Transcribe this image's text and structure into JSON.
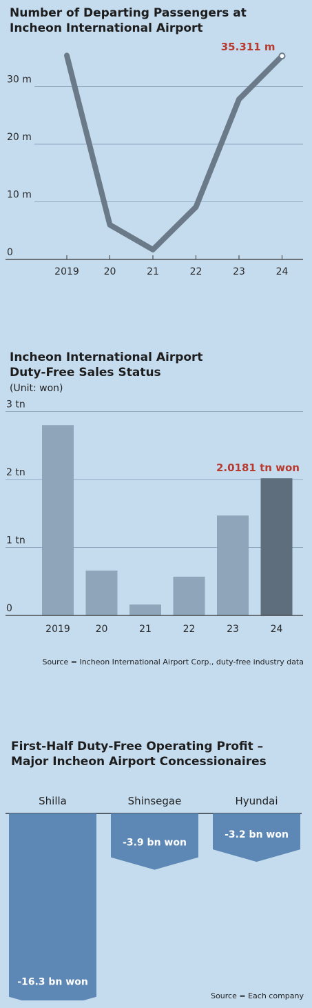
{
  "chart_data": [
    {
      "type": "line",
      "title": [
        "Number of Departing Passengers at",
        "Incheon International Airport"
      ],
      "x": [
        "2019",
        "20",
        "21",
        "22",
        "23",
        "24"
      ],
      "y_ticks": [
        "0",
        "10 m",
        "20 m",
        "30 m"
      ],
      "ylim": [
        0,
        40
      ],
      "series": [
        {
          "values": [
            35.4,
            6.0,
            1.7,
            9.1,
            27.8,
            35.311
          ]
        }
      ],
      "annotation": "35.311 m",
      "grid": true,
      "colors": {
        "line": "#6b7a88",
        "grid": "#8fa9c0",
        "axis": "#333333"
      }
    },
    {
      "type": "bar",
      "title": [
        "Incheon International Airport",
        "Duty-Free Sales Status"
      ],
      "unit": "(Unit: won)",
      "categories": [
        "2019",
        "20",
        "21",
        "22",
        "23",
        "24"
      ],
      "values": [
        2.8,
        0.66,
        0.16,
        0.57,
        1.47,
        2.0181
      ],
      "y_ticks": [
        "0",
        "1 tn",
        "2 tn",
        "3 tn"
      ],
      "ylim": [
        0,
        3
      ],
      "annotation": "2.0181 tn won",
      "source": "Source = Incheon International Airport Corp., duty-free industry data",
      "grid": true,
      "colors": {
        "bar": "#8fa5b9",
        "highlight_bar": "#5f6e7d"
      }
    },
    {
      "type": "bar",
      "title": [
        "First-Half Duty-Free Operating Profit –",
        "Major Incheon Airport Concessionaires"
      ],
      "categories": [
        "Shilla",
        "Shinsegae",
        "Hyundai"
      ],
      "values": [
        -16.3,
        -3.9,
        -3.2
      ],
      "value_labels": [
        "-16.3 bn won",
        "-3.9 bn won",
        "-3.2 bn won"
      ],
      "source": "Source = Each company",
      "colors": {
        "bar": "#5d88b5"
      }
    }
  ]
}
